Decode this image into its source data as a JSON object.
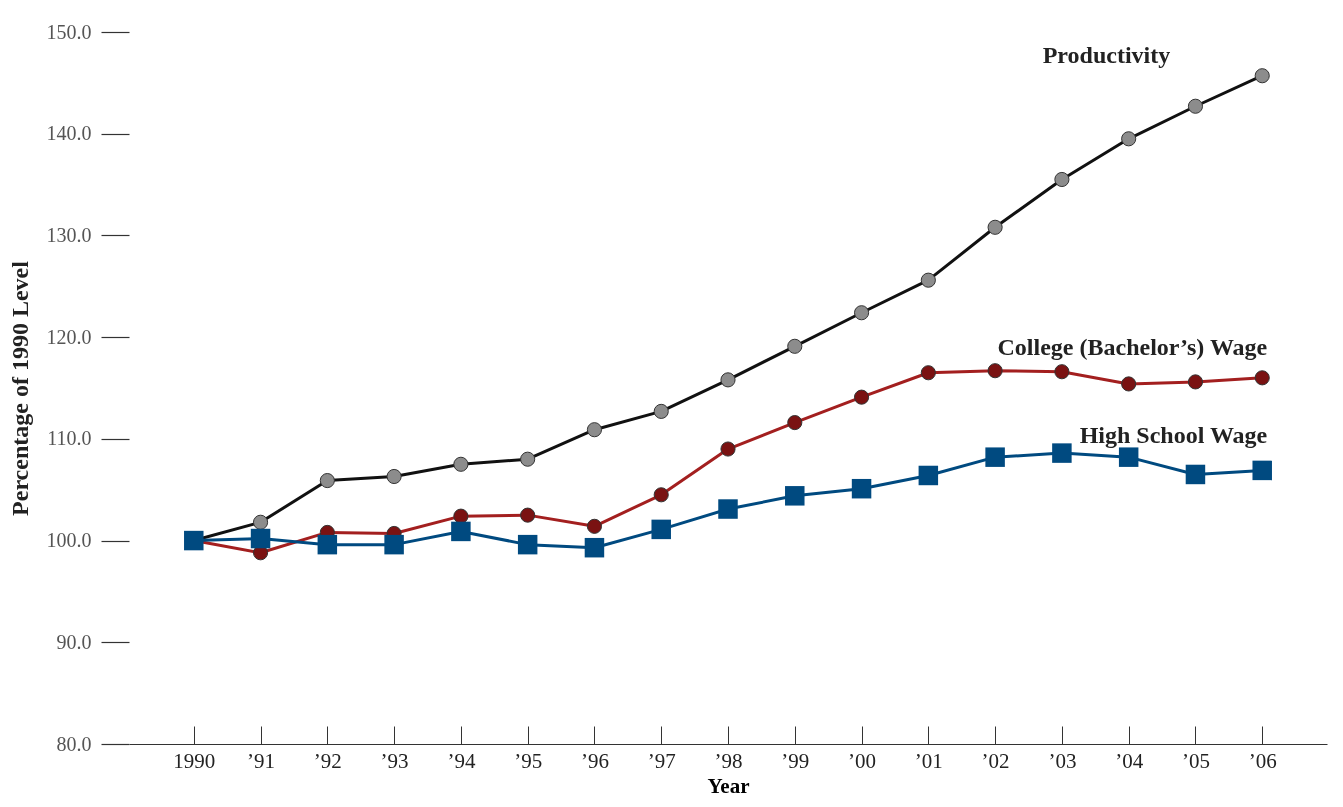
{
  "chart_data": {
    "type": "line",
    "xlabel": "Year",
    "ylabel": "Percentage of 1990 Level",
    "categories": [
      "1990",
      "’91",
      "’92",
      "’93",
      "’94",
      "’95",
      "’96",
      "’97",
      "’98",
      "’99",
      "’00",
      "’01",
      "’02",
      "’03",
      "’04",
      "’05",
      "’06"
    ],
    "series": [
      {
        "name": "Productivity",
        "color": "#111111",
        "marker": "circle",
        "values": [
          100.0,
          101.8,
          105.9,
          106.3,
          107.5,
          108.0,
          110.9,
          112.7,
          115.8,
          119.1,
          122.4,
          125.6,
          130.8,
          135.5,
          139.5,
          142.7,
          145.7
        ]
      },
      {
        "name": "College (Bachelor’s) Wage",
        "color": "#a31f1f",
        "marker": "circle",
        "values": [
          100.0,
          98.8,
          100.8,
          100.7,
          102.4,
          102.5,
          101.4,
          104.5,
          109.0,
          111.6,
          114.1,
          116.5,
          116.7,
          116.6,
          115.4,
          115.6,
          116.0
        ]
      },
      {
        "name": "High School Wage",
        "color": "#004a80",
        "marker": "square",
        "values": [
          100.0,
          100.2,
          99.6,
          99.6,
          100.9,
          99.6,
          99.3,
          101.1,
          103.1,
          104.4,
          105.1,
          106.4,
          108.2,
          108.6,
          108.2,
          106.5,
          106.9
        ]
      }
    ],
    "ylim": [
      80,
      150
    ],
    "yticks": [
      {
        "value": 80,
        "label": "80.0"
      },
      {
        "value": 90,
        "label": "90.0"
      },
      {
        "value": 100,
        "label": "100.0"
      },
      {
        "value": 110,
        "label": "110.0"
      },
      {
        "value": 120,
        "label": "120.0"
      },
      {
        "value": 130,
        "label": "130.0"
      },
      {
        "value": 140,
        "label": "140.0"
      },
      {
        "value": 150,
        "label": "150.0"
      }
    ]
  }
}
